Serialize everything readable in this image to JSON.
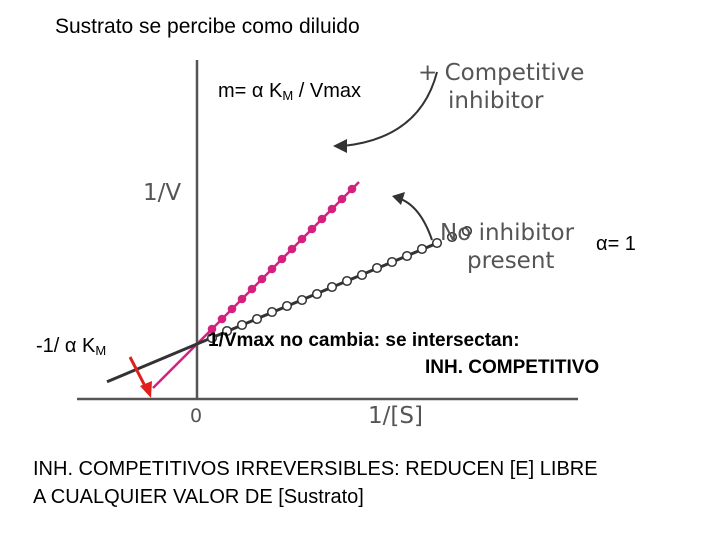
{
  "header": {
    "title": "Sustrato se percibe como diluido"
  },
  "annotations": {
    "slope_m": "m=",
    "slope_alpha": "α",
    "slope_km": "K",
    "slope_km_sub": "M",
    "slope_rest": "/ Vmax",
    "alpha_eq": "α= 1",
    "xint_prefix": "-1/",
    "xint_alpha": "α",
    "xint_km": "K",
    "xint_km_sub": "M",
    "note_line1": "1/Vmax no cambia: se intersectan:",
    "note_line2": "INH. COMPETITIVO"
  },
  "footer": {
    "line1": "INH. COMPETITIVOS IRREVERSIBLES: REDUCEN [E] LIBRE",
    "line2": "A CUALQUIER VALOR DE [Sustrato]"
  },
  "colors": {
    "inhibitor": "#d6207f",
    "no_inhibitor": "#333333",
    "axis": "#555555",
    "arrow_red": "#e0201c"
  },
  "chart_data": {
    "type": "line",
    "xlabel": "1/[S]",
    "ylabel": "1/V",
    "origin_label": "0",
    "legend": [
      {
        "label_line1": "+ Competitive",
        "label_line2": "inhibitor"
      },
      {
        "label_line1": "No inhibitor",
        "label_line2": "present"
      }
    ],
    "x_range": [
      -1.0,
      3.5
    ],
    "y_range": [
      -0.6,
      2.3
    ],
    "grid": false,
    "series": [
      {
        "slope": 1.0,
        "intercept": 0.55,
        "color": "#d6207f",
        "x": [
          0.15,
          0.25,
          0.35,
          0.45,
          0.55,
          0.65,
          0.75,
          0.85,
          0.95,
          1.05,
          1.15,
          1.25,
          1.35,
          1.45,
          1.55
        ],
        "y": [
          0.7,
          0.8,
          0.9,
          1.0,
          1.1,
          1.2,
          1.3,
          1.4,
          1.5,
          1.6,
          1.7,
          1.8,
          1.9,
          2.0,
          2.1
        ]
      },
      {
        "slope": 0.42,
        "intercept": 0.55,
        "color": "#333333",
        "x": [
          0.15,
          0.3,
          0.45,
          0.6,
          0.75,
          0.9,
          1.05,
          1.2,
          1.35,
          1.5,
          1.65,
          1.8,
          1.95,
          2.1,
          2.25,
          2.4,
          2.55,
          2.7
        ],
        "y": [
          0.61,
          0.68,
          0.74,
          0.8,
          0.87,
          0.93,
          0.99,
          1.05,
          1.12,
          1.18,
          1.24,
          1.31,
          1.37,
          1.43,
          1.5,
          1.56,
          1.62,
          1.68
        ]
      }
    ]
  }
}
